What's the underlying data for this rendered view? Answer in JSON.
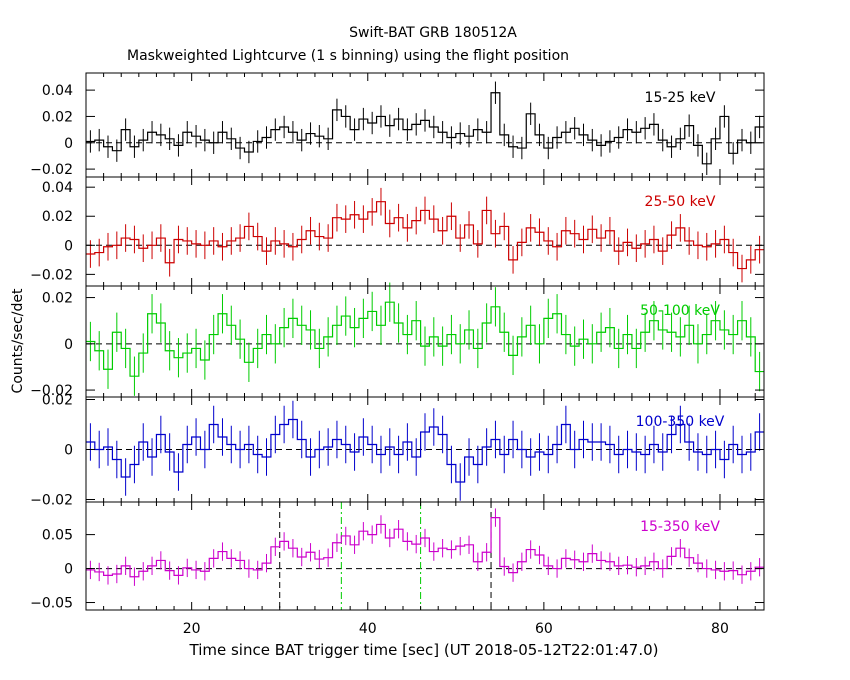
{
  "chart_data": {
    "type": "line",
    "title": "Swift-BAT GRB 180512A",
    "subtitle": "Maskweighted Lightcurve (1 s binning) using the flight position",
    "xlabel": "Time since BAT trigger time [sec] (UT 2018-05-12T22:01:47.0)",
    "ylabel": "Counts/sec/det",
    "xlim": [
      8,
      85
    ],
    "x_ticks": [
      20,
      40,
      60,
      80
    ],
    "x_tick_labels": [
      "20",
      "40",
      "60",
      "80"
    ],
    "grid": false,
    "x": [
      8.5,
      9.5,
      10.5,
      11.5,
      12.5,
      13.5,
      14.5,
      15.5,
      16.5,
      17.5,
      18.5,
      19.5,
      20.5,
      21.5,
      22.5,
      23.5,
      24.5,
      25.5,
      26.5,
      27.5,
      28.5,
      29.5,
      30.5,
      31.5,
      32.5,
      33.5,
      34.5,
      35.5,
      36.5,
      37.5,
      38.5,
      39.5,
      40.5,
      41.5,
      42.5,
      43.5,
      44.5,
      45.5,
      46.5,
      47.5,
      48.5,
      49.5,
      50.5,
      51.5,
      52.5,
      53.5,
      54.5,
      55.5,
      56.5,
      57.5,
      58.5,
      59.5,
      60.5,
      61.5,
      62.5,
      63.5,
      64.5,
      65.5,
      66.5,
      67.5,
      68.5,
      69.5,
      70.5,
      71.5,
      72.5,
      73.5,
      74.5,
      75.5,
      76.5,
      77.5,
      78.5,
      79.5,
      80.5,
      81.5,
      82.5,
      83.5,
      84.5
    ],
    "panels": [
      {
        "name": "15-25 keV",
        "color": "#000000",
        "ylim": [
          -0.026,
          0.053
        ],
        "yticks": [
          -0.02,
          0,
          0.02,
          0.04
        ],
        "ytick_labels": [
          "−0.02",
          "0",
          "0.02",
          "0.04"
        ],
        "err": 0.0085,
        "values": [
          0.001,
          0.002,
          -0.003,
          -0.006,
          0.01,
          -0.003,
          0.002,
          0.008,
          0.006,
          0.003,
          -0.002,
          0.008,
          0.005,
          0.002,
          0.0,
          0.008,
          0.003,
          -0.004,
          -0.007,
          0.001,
          0.004,
          0.01,
          0.012,
          0.008,
          0.002,
          0.007,
          0.005,
          0.003,
          0.025,
          0.02,
          0.01,
          0.018,
          0.015,
          0.02,
          0.013,
          0.018,
          0.01,
          0.014,
          0.017,
          0.012,
          0.008,
          0.004,
          0.007,
          0.005,
          0.01,
          0.008,
          0.038,
          0.006,
          -0.003,
          -0.004,
          0.022,
          0.006,
          -0.004,
          0.004,
          0.008,
          0.011,
          0.006,
          0.002,
          -0.002,
          0.001,
          0.004,
          0.01,
          0.008,
          0.011,
          0.014,
          0.002,
          -0.003,
          0.003,
          0.013,
          -0.002,
          -0.016,
          0.003,
          0.02,
          -0.008,
          0.002,
          0.0,
          0.012
        ]
      },
      {
        "name": "25-50 keV",
        "color": "#cc0000",
        "ylim": [
          -0.028,
          0.047
        ],
        "yticks": [
          -0.02,
          0,
          0.02,
          0.04
        ],
        "ytick_labels": [
          "−0.02",
          "0",
          "0.02",
          "0.04"
        ],
        "err": 0.0095,
        "values": [
          -0.006,
          -0.005,
          -0.001,
          0.0,
          0.005,
          0.004,
          -0.002,
          0.0,
          0.005,
          -0.012,
          0.004,
          0.003,
          0.001,
          0.0,
          0.003,
          -0.001,
          0.003,
          0.005,
          0.013,
          0.006,
          -0.004,
          0.003,
          0.001,
          -0.001,
          0.004,
          0.01,
          0.006,
          0.005,
          0.019,
          0.018,
          0.021,
          0.018,
          0.023,
          0.03,
          0.015,
          0.019,
          0.012,
          0.017,
          0.024,
          0.018,
          0.01,
          0.02,
          0.005,
          0.014,
          0.001,
          0.024,
          0.008,
          0.013,
          -0.01,
          0.002,
          0.012,
          0.009,
          0.003,
          -0.001,
          0.01,
          0.008,
          0.004,
          0.011,
          0.005,
          0.01,
          -0.004,
          0.002,
          -0.002,
          0.001,
          0.004,
          -0.004,
          0.007,
          0.012,
          0.003,
          0.0,
          -0.001,
          0.001,
          0.004,
          -0.005,
          -0.016,
          -0.01,
          -0.003
        ]
      },
      {
        "name": "50-100 keV",
        "color": "#00cc00",
        "ylim": [
          -0.023,
          0.025
        ],
        "yticks": [
          -0.02,
          0,
          0.02
        ],
        "ytick_labels": [
          "−0.02",
          "0",
          "0.02"
        ],
        "err": 0.0085,
        "values": [
          0.001,
          -0.003,
          -0.011,
          0.005,
          -0.002,
          -0.014,
          -0.004,
          0.013,
          0.009,
          -0.003,
          -0.006,
          -0.004,
          -0.002,
          -0.007,
          0.004,
          0.013,
          0.008,
          0.002,
          -0.008,
          -0.002,
          0.004,
          0.0,
          0.007,
          0.011,
          0.008,
          0.006,
          -0.002,
          0.003,
          0.008,
          0.012,
          0.007,
          0.011,
          0.014,
          0.008,
          0.018,
          0.009,
          0.004,
          0.01,
          -0.001,
          0.003,
          -0.001,
          0.004,
          0.0,
          0.006,
          -0.002,
          0.009,
          0.016,
          0.005,
          -0.005,
          0.003,
          0.008,
          0.0,
          0.011,
          0.013,
          0.004,
          -0.001,
          0.002,
          0.0,
          0.005,
          0.007,
          -0.002,
          0.004,
          -0.002,
          0.005,
          0.01,
          0.006,
          0.005,
          0.003,
          0.008,
          0.0,
          0.004,
          0.01,
          0.006,
          0.004,
          0.01,
          0.003,
          -0.012
        ]
      },
      {
        "name": "100-350 keV",
        "color": "#0000cc",
        "ylim": [
          -0.021,
          0.021
        ],
        "yticks": [
          -0.02,
          0,
          0.02
        ],
        "ytick_labels": [
          "−0.02",
          "0",
          "0.02"
        ],
        "err": 0.0075,
        "values": [
          0.003,
          0.0,
          0.001,
          -0.004,
          -0.011,
          -0.006,
          0.003,
          -0.003,
          0.006,
          -0.001,
          -0.009,
          0.002,
          0.005,
          0.0,
          0.01,
          0.005,
          0.002,
          0.0,
          0.002,
          -0.002,
          -0.003,
          0.006,
          0.01,
          0.012,
          0.004,
          -0.003,
          0.0,
          0.001,
          0.004,
          0.002,
          -0.001,
          0.005,
          0.002,
          -0.002,
          0.001,
          -0.002,
          0.003,
          -0.003,
          0.007,
          0.009,
          0.006,
          -0.006,
          -0.013,
          -0.003,
          -0.006,
          0.001,
          0.004,
          -0.002,
          0.004,
          0.0,
          -0.003,
          -0.001,
          -0.002,
          0.002,
          0.01,
          0.0,
          0.004,
          0.003,
          0.003,
          0.002,
          -0.002,
          0.0,
          -0.001,
          -0.002,
          0.002,
          -0.001,
          0.006,
          0.01,
          0.003,
          -0.001,
          -0.002,
          0.0,
          -0.004,
          0.002,
          -0.002,
          -0.001,
          0.007
        ]
      },
      {
        "name": "15-350 keV",
        "color": "#cc00cc",
        "ylim": [
          -0.061,
          0.098
        ],
        "yticks": [
          -0.05,
          0,
          0.05
        ],
        "ytick_labels": [
          "−0.05",
          "0",
          "0.05"
        ],
        "err": 0.0135,
        "values": [
          -0.002,
          -0.005,
          -0.01,
          -0.008,
          0.004,
          -0.012,
          -0.004,
          0.004,
          0.012,
          -0.003,
          -0.01,
          0.001,
          -0.002,
          -0.004,
          0.015,
          0.025,
          0.015,
          0.012,
          0.0,
          -0.002,
          0.008,
          0.032,
          0.04,
          0.03,
          0.017,
          0.024,
          0.014,
          0.016,
          0.038,
          0.048,
          0.035,
          0.055,
          0.05,
          0.065,
          0.045,
          0.058,
          0.04,
          0.036,
          0.045,
          0.025,
          0.03,
          0.028,
          0.033,
          0.035,
          0.01,
          0.024,
          0.075,
          0.003,
          -0.006,
          0.01,
          0.028,
          0.02,
          0.004,
          0.0,
          0.015,
          0.013,
          0.01,
          0.022,
          0.012,
          0.01,
          0.004,
          0.005,
          0.002,
          0.004,
          0.01,
          0.0,
          0.018,
          0.03,
          0.016,
          0.008,
          0.0,
          -0.002,
          -0.004,
          -0.003,
          -0.009,
          -0.004,
          0.002
        ]
      }
    ],
    "vertical_lines": [
      {
        "x": 30.0,
        "panels": [
          4
        ],
        "color": "#000000",
        "style": "dashed"
      },
      {
        "x": 54.0,
        "panels": [
          4
        ],
        "color": "#000000",
        "style": "dashed"
      },
      {
        "x": 37.0,
        "panels": [
          4
        ],
        "color": "#00cc00",
        "style": "dash-dot"
      },
      {
        "x": 46.0,
        "panels": [
          4
        ],
        "color": "#00cc00",
        "style": "dash-dot"
      }
    ]
  }
}
